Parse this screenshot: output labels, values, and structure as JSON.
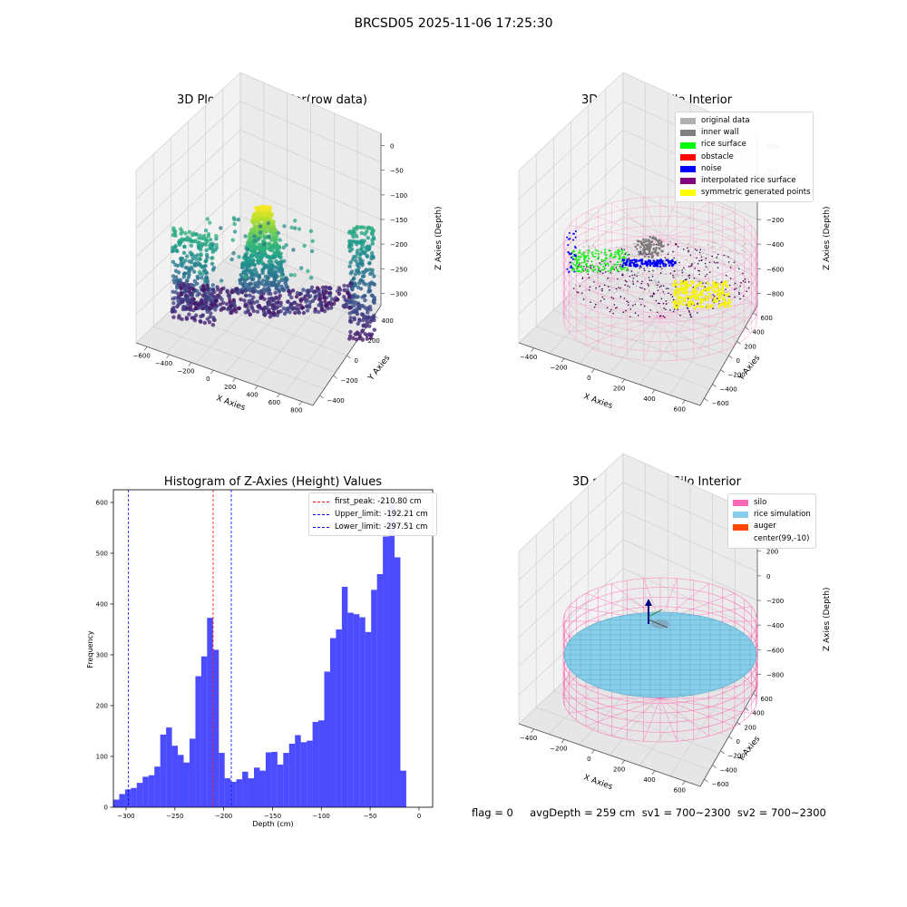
{
  "suptitle": "BRCSD05 2025-11-06 17:25:30",
  "panels": {
    "tl": {
      "title": "3D Plot of Silo Interior(row data)",
      "xlabel": "X Axies",
      "ylabel": "Y Axies",
      "zlabel": "Z Axies (Depth)",
      "xticks": [
        "−600",
        "−400",
        "−200",
        "0",
        "200",
        "400",
        "600",
        "800"
      ],
      "yticks": [
        "400",
        "200",
        "0",
        "−200",
        "−400"
      ],
      "zticks": [
        "0",
        "−50",
        "−100",
        "−150",
        "−200",
        "−250",
        "−300"
      ]
    },
    "tr": {
      "title": "3D classify of Silo Interior",
      "xlabel": "X Axies",
      "ylabel": "Y Axies",
      "zlabel": "Z Axies (Depth)",
      "xticks": [
        "−400",
        "−200",
        "0",
        "200",
        "400",
        "600"
      ],
      "yticks": [
        "600",
        "400",
        "200",
        "0",
        "−200",
        "−400",
        "−600"
      ],
      "zticks": [
        "400",
        "200",
        "0",
        "−200",
        "−400",
        "−600",
        "−800"
      ],
      "legend": [
        {
          "label": "original data",
          "color": "#b0b0b0"
        },
        {
          "label": "inner wall",
          "color": "#808080"
        },
        {
          "label": "rice surface",
          "color": "#00ff00"
        },
        {
          "label": "obstacle",
          "color": "#ff0000"
        },
        {
          "label": "noise",
          "color": "#0000ff"
        },
        {
          "label": "interpolated rice surface",
          "color": "#800080"
        },
        {
          "label": "symmetric generated points",
          "color": "#ffff00"
        }
      ]
    },
    "br": {
      "title": "3D simulation of Silo Interior",
      "xlabel": "X Axies",
      "ylabel": "Y Axies",
      "zlabel": "Z Axies (Depth)",
      "xticks": [
        "−400",
        "−200",
        "0",
        "200",
        "400",
        "600"
      ],
      "yticks": [
        "600",
        "400",
        "200",
        "0",
        "−200",
        "−400",
        "−600"
      ],
      "zticks": [
        "400",
        "200",
        "0",
        "−200",
        "−400",
        "−600",
        "−800"
      ],
      "legend": [
        {
          "label": "silo",
          "color": "#ff69b4"
        },
        {
          "label": "rice simulation",
          "color": "#87ceeb"
        },
        {
          "label": "auger",
          "color": "#ff4500"
        },
        {
          "label": "center(99,-10)",
          "color": ""
        }
      ]
    }
  },
  "footer": "flag = 0     avgDepth = 259 cm  sv1 = 700~2300  sv2 = 700~2300",
  "chart_data": {
    "type": "bar",
    "title": "Histogram of Z-Axies (Height) Values",
    "xlabel": "Depth (cm)",
    "ylabel": "Frequency",
    "xlim": [
      -313,
      14
    ],
    "ylim": [
      0,
      625
    ],
    "xticks": [
      -300,
      -250,
      -200,
      -150,
      -100,
      -50,
      0
    ],
    "xtick_labels": [
      "−300",
      "−250",
      "−200",
      "−150",
      "−100",
      "−50",
      "0"
    ],
    "yticks": [
      0,
      100,
      200,
      300,
      400,
      500,
      600
    ],
    "bin_edges": [
      -313,
      -307,
      -301,
      -295,
      -289,
      -283,
      -277,
      -271,
      -265,
      -259,
      -253,
      -247,
      -241,
      -235,
      -229,
      -223,
      -217,
      -211,
      -205,
      -199,
      -193,
      -187,
      -181,
      -175,
      -169,
      -163,
      -157,
      -151,
      -145,
      -139,
      -133,
      -127,
      -121,
      -115,
      -109,
      -103,
      -97,
      -91,
      -85,
      -79,
      -73,
      -67,
      -61,
      -55,
      -49,
      -43,
      -37,
      -31,
      -25,
      -19,
      -13,
      -7,
      -1
    ],
    "counts": [
      15,
      26,
      35,
      38,
      48,
      60,
      63,
      80,
      143,
      157,
      121,
      103,
      88,
      135,
      258,
      297,
      373,
      310,
      107,
      57,
      50,
      55,
      70,
      57,
      78,
      72,
      108,
      109,
      84,
      107,
      125,
      142,
      128,
      131,
      168,
      171,
      267,
      333,
      350,
      434,
      383,
      380,
      374,
      345,
      428,
      459,
      533,
      597,
      492,
      72,
      0,
      0
    ],
    "bar_color": "#0000ff",
    "vlines": [
      {
        "label": "first_peak: -210.80 cm",
        "x": -210.8,
        "color": "#ff0000"
      },
      {
        "label": "Upper_limit: -192.21 cm",
        "x": -192.21,
        "color": "#0000ff"
      },
      {
        "label": "Lower_limit: -297.51 cm",
        "x": -297.51,
        "color": "#0000ff"
      }
    ],
    "legend_position": "upper right"
  }
}
